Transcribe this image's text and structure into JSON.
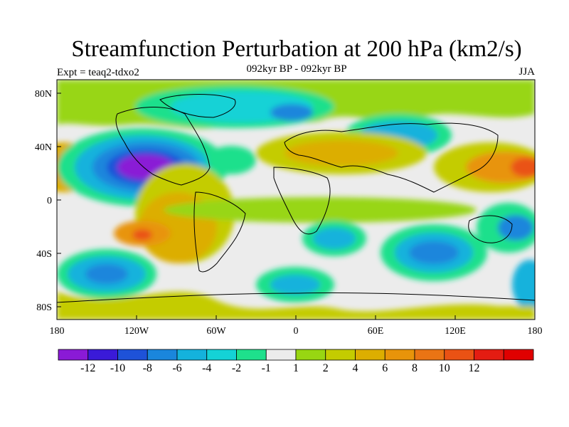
{
  "title": "Streamfunction Perturbation at 200 hPa (km2/s)",
  "subtitle": "092kyr BP - 092kyr BP",
  "experiment": "Expt = teaq2-tdxo2",
  "season": "JJA",
  "lat_labels": [
    "80N",
    "40N",
    "0",
    "40S",
    "80S"
  ],
  "lon_labels": [
    "180",
    "120W",
    "60W",
    "0",
    "60E",
    "120E",
    "180"
  ],
  "colorbar": {
    "colors": [
      "#8a1ad6",
      "#3a1ad8",
      "#1e52d8",
      "#1a86dc",
      "#14b2dc",
      "#14d2d6",
      "#1ee08c",
      "#ececec",
      "#98d612",
      "#c4cc00",
      "#dcae00",
      "#e8940a",
      "#ea7414",
      "#ea5214",
      "#e41c12",
      "#e00000"
    ],
    "tick_labels": [
      "-12",
      "-10",
      "-8",
      "-6",
      "-4",
      "-2",
      "-1",
      "1",
      "2",
      "4",
      "6",
      "8",
      "10",
      "12"
    ]
  },
  "map_extent": {
    "lon": [
      -180,
      180
    ],
    "lat": [
      -90,
      90
    ]
  }
}
